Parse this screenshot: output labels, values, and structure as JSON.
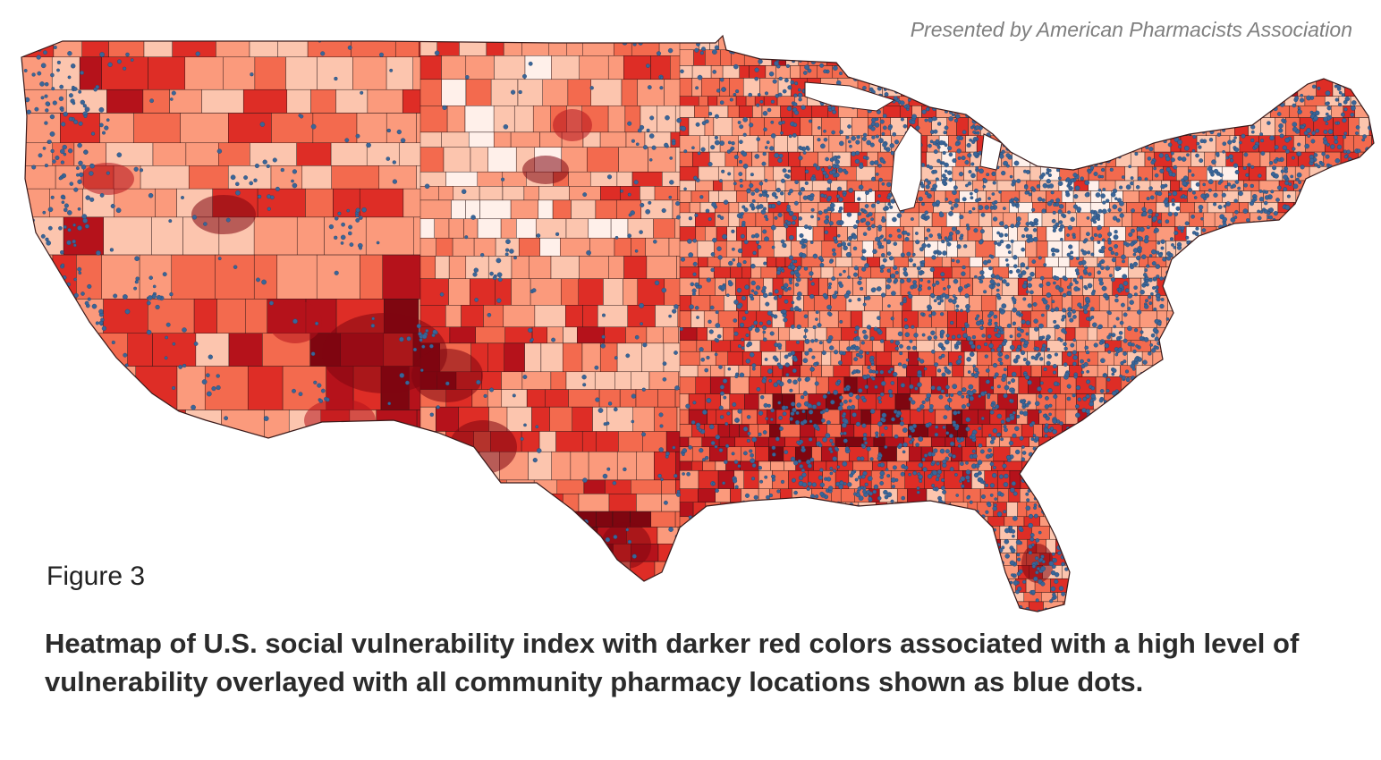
{
  "attribution": "Presented by American Pharmacists Association",
  "figure_label": "Figure 3",
  "caption": "Heatmap of U.S. social vulnerability index with darker red colors associated with a high level of vulnerability overlayed with all community pharmacy locations shown as blue dots.",
  "map": {
    "region": "Contiguous United States",
    "layers": [
      "county social vulnerability index heatmap",
      "community pharmacy locations"
    ],
    "colors": {
      "vulnerability_scale": [
        "#fff0ea",
        "#fcc5ae",
        "#fb9a7c",
        "#f36a4e",
        "#de2d26",
        "#b5121b",
        "#7f0610"
      ],
      "pharmacy_dot": "#3a6598",
      "pharmacy_dot_edge": "#24476f",
      "county_border": "#2a1414"
    }
  }
}
